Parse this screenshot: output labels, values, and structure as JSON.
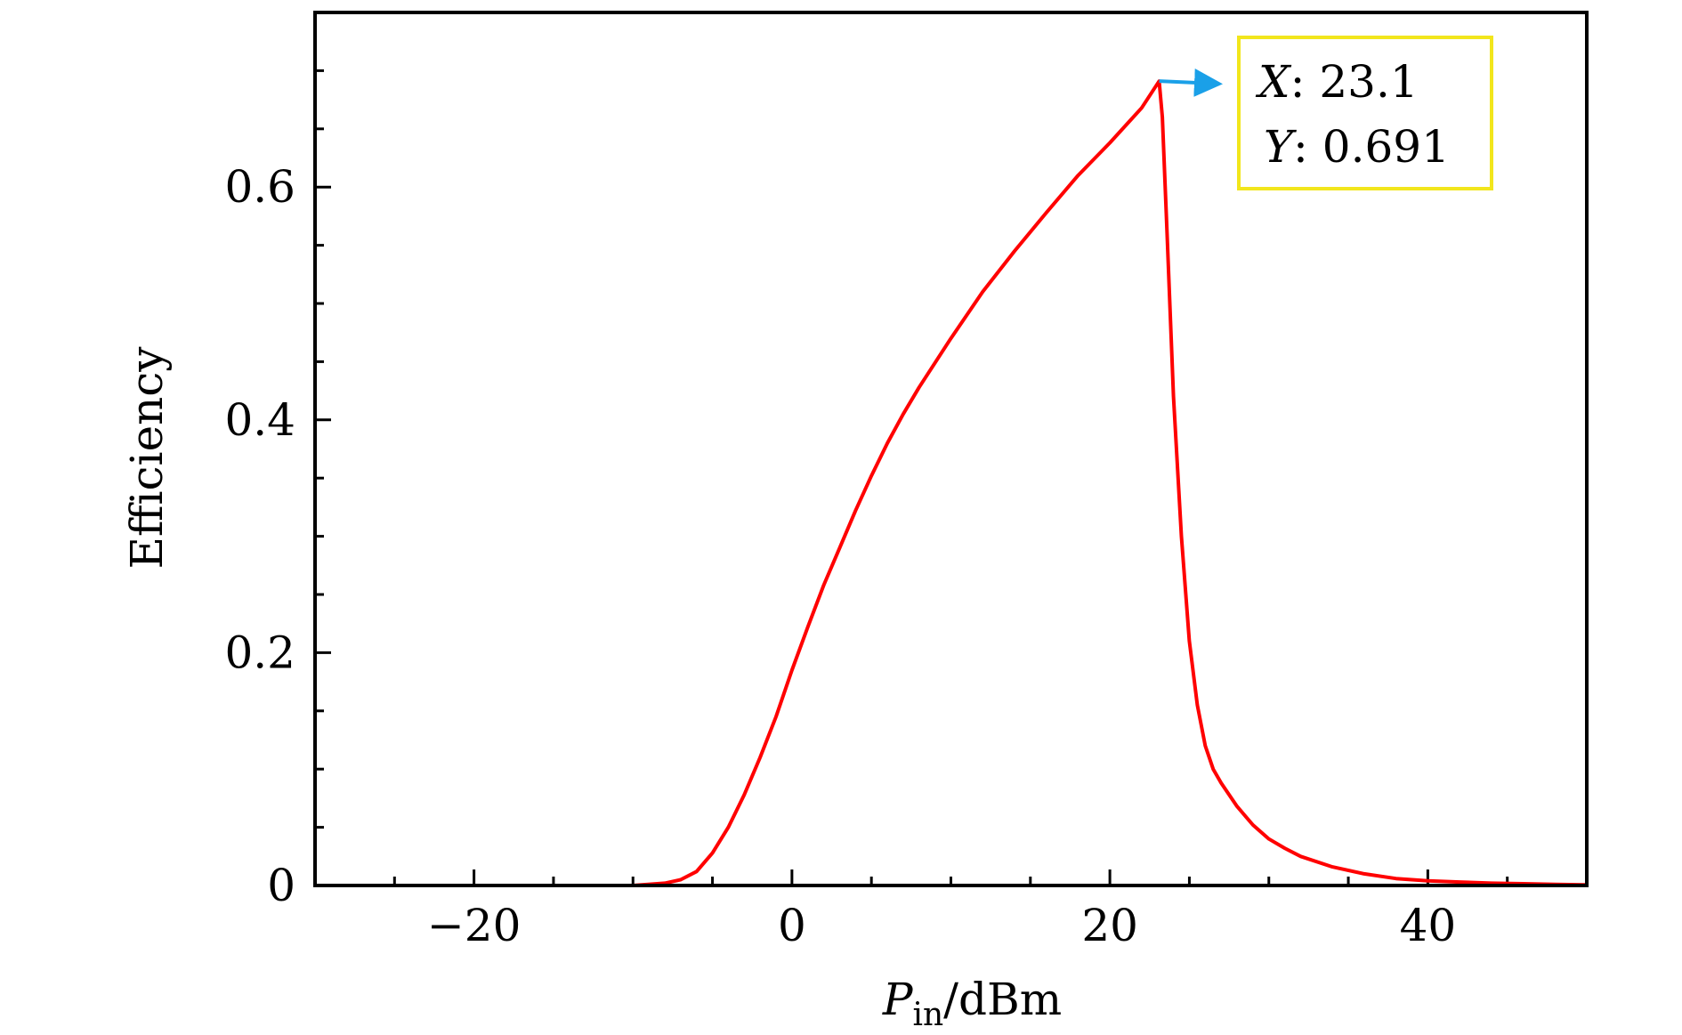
{
  "chart_data": {
    "type": "line",
    "title": "",
    "xlabel_main": "P",
    "xlabel_sub": "in",
    "xlabel_unit": "/dBm",
    "ylabel": "Efficiency",
    "xlim": [
      -30,
      50
    ],
    "ylim": [
      0,
      0.75
    ],
    "x_ticks": [
      -20,
      0,
      20,
      40
    ],
    "x_tick_labels": [
      "−20",
      "0",
      "20",
      "40"
    ],
    "x_minor_step": 5,
    "y_ticks": [
      0,
      0.2,
      0.4,
      0.6
    ],
    "y_tick_labels": [
      "0",
      "0.2",
      "0.4",
      "0.6"
    ],
    "y_minor_step": 0.1,
    "grid": false,
    "series": [
      {
        "color": "#ff0000",
        "x": [
          -10,
          -8,
          -7,
          -6,
          -5,
          -4,
          -3,
          -2,
          -1,
          0,
          1,
          2,
          3,
          4,
          5,
          6,
          7,
          8,
          10,
          12,
          14,
          16,
          18,
          20,
          22,
          23.1,
          23.3,
          23.6,
          24,
          24.5,
          25,
          25.5,
          26,
          26.5,
          27,
          28,
          29,
          30,
          31,
          32,
          34,
          36,
          38,
          40,
          42,
          44,
          46,
          48,
          50
        ],
        "y": [
          0,
          0.002,
          0.005,
          0.012,
          0.028,
          0.05,
          0.078,
          0.11,
          0.145,
          0.185,
          0.222,
          0.258,
          0.29,
          0.322,
          0.352,
          0.38,
          0.405,
          0.428,
          0.47,
          0.51,
          0.545,
          0.578,
          0.61,
          0.638,
          0.668,
          0.691,
          0.66,
          0.56,
          0.42,
          0.3,
          0.21,
          0.155,
          0.12,
          0.1,
          0.088,
          0.068,
          0.052,
          0.04,
          0.032,
          0.025,
          0.016,
          0.01,
          0.006,
          0.004,
          0.003,
          0.002,
          0.0015,
          0.001,
          0.0005
        ]
      }
    ],
    "annotation": {
      "x": 23.1,
      "y": 0.691,
      "x_label": "X",
      "x_value": ": 23.1",
      "y_label": "Y",
      "y_value": ": 0.691",
      "border_color": "#f2e61c",
      "arrow_color": "#1aa0e8"
    }
  }
}
